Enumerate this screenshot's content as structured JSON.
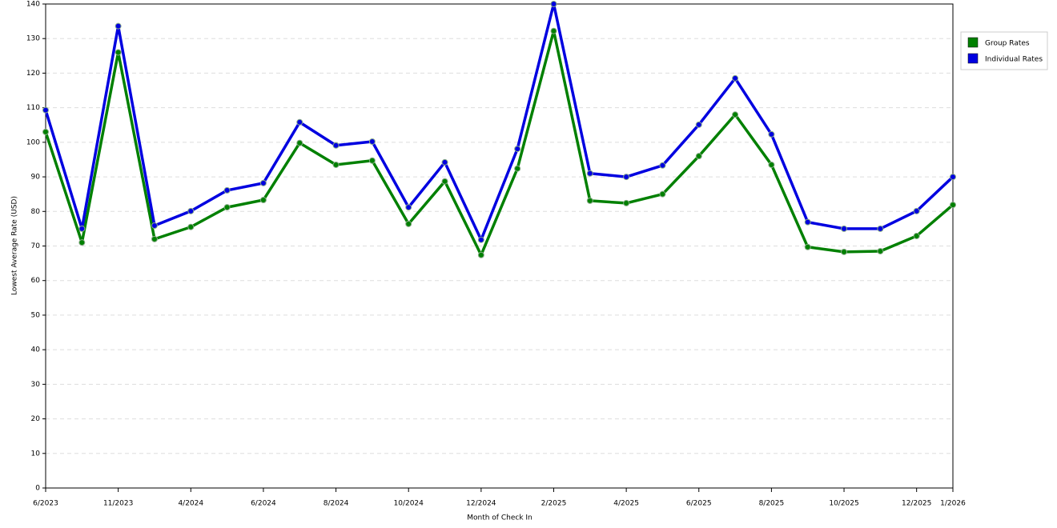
{
  "chart_data": {
    "type": "line",
    "x_label": "Month of Check In",
    "y_label": "Lowest Average Rate (USD)",
    "categories": [
      "6/2023",
      null,
      "11/2023",
      null,
      "4/2024",
      null,
      "6/2024",
      null,
      "8/2024",
      null,
      "10/2024",
      null,
      "12/2024",
      null,
      "2/2025",
      null,
      "4/2025",
      null,
      "6/2025",
      null,
      "8/2025",
      null,
      "10/2025",
      null,
      "12/2025",
      "1/2026"
    ],
    "series": [
      {
        "name": "Group Rates",
        "color": "#008000",
        "values": [
          103,
          71,
          126,
          72,
          75.5,
          81.2,
          83.3,
          99.8,
          93.5,
          94.7,
          76.4,
          88.7,
          67.4,
          92.4,
          132.2,
          83.1,
          82.4,
          85,
          96,
          108,
          93.5,
          69.7,
          68.3,
          68.5,
          72.9,
          81.9
        ]
      },
      {
        "name": "Individual Rates",
        "color": "#0000e0",
        "values": [
          109.3,
          75,
          133.6,
          75.9,
          80.1,
          86.1,
          88.2,
          105.8,
          99.1,
          100.2,
          81.2,
          94.2,
          71.8,
          98.1,
          140,
          91,
          90,
          93.3,
          105.1,
          118.5,
          102.3,
          76.9,
          75,
          75,
          80.1,
          90
        ]
      }
    ],
    "ylim": [
      0,
      140
    ],
    "yticks": [
      0,
      10,
      20,
      30,
      40,
      50,
      60,
      70,
      80,
      90,
      100,
      110,
      120,
      130,
      140
    ],
    "grid": true,
    "legend": "right"
  }
}
